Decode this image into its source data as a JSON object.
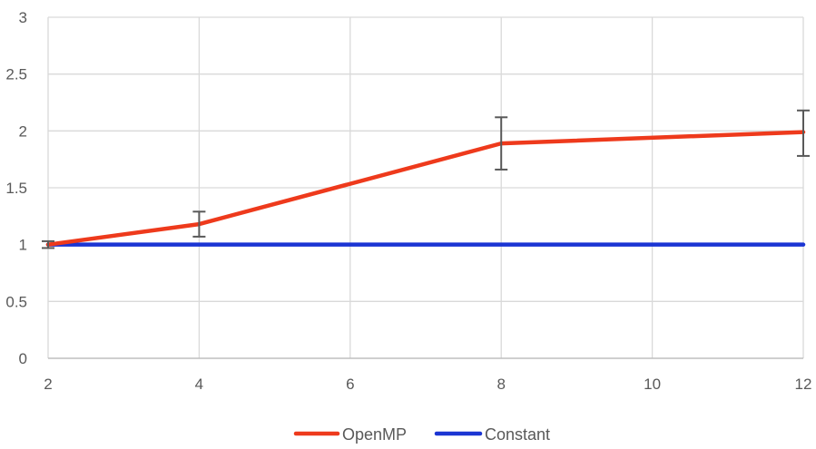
{
  "chart_data": {
    "type": "line",
    "title": "",
    "xlabel": "",
    "ylabel": "",
    "xlim": [
      2,
      12
    ],
    "ylim": [
      0,
      3
    ],
    "x_ticks": [
      2,
      4,
      6,
      8,
      10,
      12
    ],
    "y_ticks": [
      0,
      0.5,
      1,
      1.5,
      2,
      2.5,
      3
    ],
    "x_tick_labels": [
      "2",
      "4",
      "6",
      "8",
      "10",
      "12"
    ],
    "y_tick_labels": [
      "0",
      "0.5",
      "1",
      "1.5",
      "2",
      "2.5",
      "3"
    ],
    "grid": true,
    "legend_position": "bottom",
    "series": [
      {
        "name": "OpenMP",
        "color": "#ee3a1c",
        "x": [
          2,
          4,
          8,
          12
        ],
        "values": [
          1.0,
          1.18,
          1.89,
          1.99
        ],
        "error_bars": [
          {
            "x": 2,
            "low": 0.97,
            "high": 1.03
          },
          {
            "x": 4,
            "low": 1.07,
            "high": 1.29
          },
          {
            "x": 8,
            "low": 1.66,
            "high": 2.12
          },
          {
            "x": 12,
            "low": 1.78,
            "high": 2.18
          }
        ]
      },
      {
        "name": "Constant",
        "color": "#1b35d3",
        "x": [
          2,
          12
        ],
        "values": [
          1.0,
          1.0
        ]
      }
    ]
  },
  "colors": {
    "grid": "#d9d9d9",
    "axis": "#bfbfbf",
    "error_bar": "#595959"
  }
}
